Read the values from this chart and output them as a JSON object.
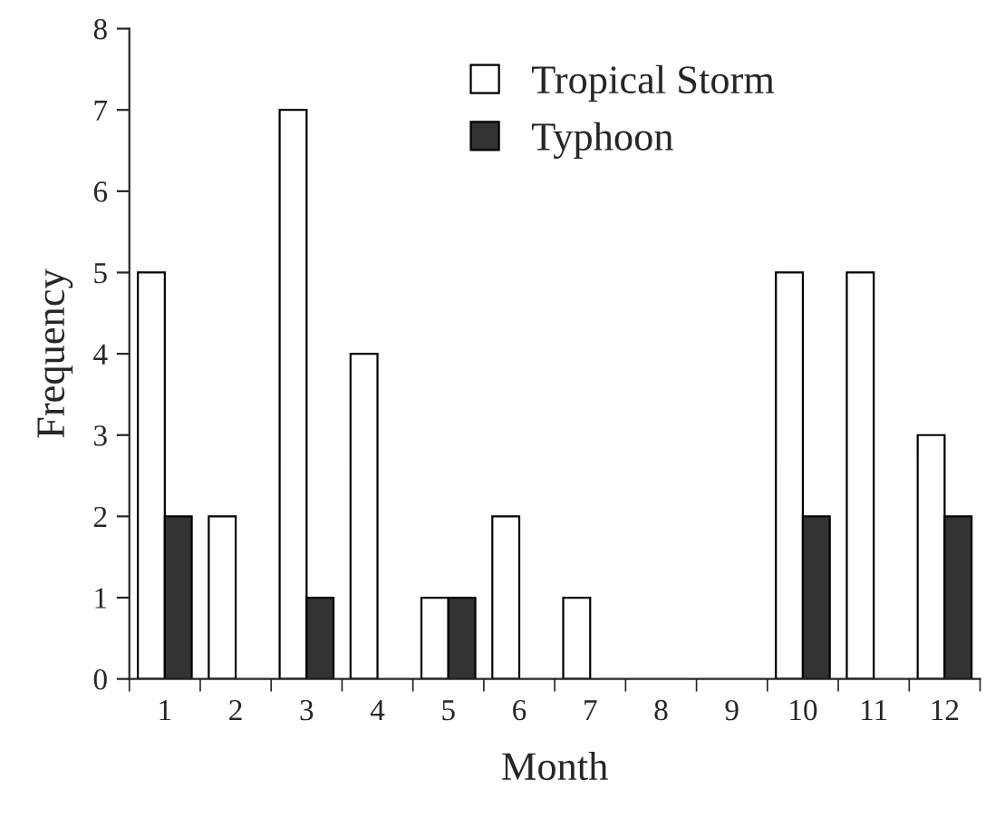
{
  "chart_data": {
    "type": "bar",
    "xlabel": "Month",
    "ylabel": "Frequency",
    "categories": [
      "1",
      "2",
      "3",
      "4",
      "5",
      "6",
      "7",
      "8",
      "9",
      "10",
      "11",
      "12"
    ],
    "series": [
      {
        "name": "Tropical Storm",
        "color": "#ffffff",
        "values": [
          5,
          2,
          7,
          4,
          1,
          2,
          1,
          0,
          0,
          5,
          5,
          3
        ]
      },
      {
        "name": "Typhoon",
        "color": "#333333",
        "values": [
          2,
          0,
          1,
          0,
          1,
          0,
          0,
          0,
          0,
          2,
          0,
          2
        ]
      }
    ],
    "ylim": [
      0,
      8
    ],
    "yticks": [
      0,
      1,
      2,
      3,
      4,
      5,
      6,
      7,
      8
    ],
    "grid": false,
    "legend": "top"
  }
}
